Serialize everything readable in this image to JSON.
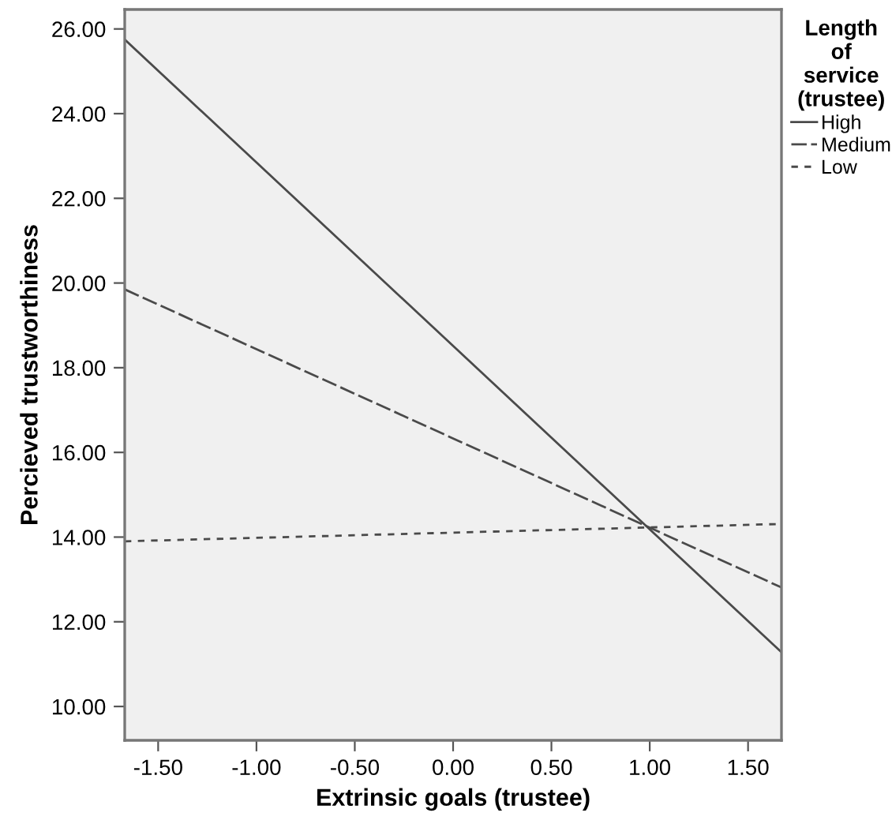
{
  "chart_data": {
    "type": "line",
    "xlabel": "Extrinsic goals (trustee)",
    "ylabel": "Percieved trustworthiness",
    "legend_title": "Length\nof\nservice\n(trustee)",
    "x": [
      -1.67,
      1.67
    ],
    "series": [
      {
        "name": "High",
        "color": "#4a4a4a",
        "line_style": "solid",
        "values": [
          25.75,
          11.28
        ]
      },
      {
        "name": "Medium",
        "color": "#4a4a4a",
        "line_style": "dashed",
        "values": [
          19.85,
          12.81
        ]
      },
      {
        "name": "Low",
        "color": "#4a4a4a",
        "line_style": "dotted",
        "values": [
          13.9,
          14.31
        ]
      }
    ],
    "xlim": [
      -1.67,
      1.67
    ],
    "ylim": [
      9.2,
      26.46
    ],
    "xticks": [
      {
        "value": -1.5,
        "label": "-1.50"
      },
      {
        "value": -1.0,
        "label": "-1.00"
      },
      {
        "value": -0.5,
        "label": "-0.50"
      },
      {
        "value": 0,
        "label": "0.00"
      },
      {
        "value": 0.5,
        "label": "0.50"
      },
      {
        "value": 1.0,
        "label": "1.00"
      },
      {
        "value": 1.5,
        "label": "1.50"
      }
    ],
    "yticks": [
      {
        "value": 10,
        "label": "10.00"
      },
      {
        "value": 12,
        "label": "12.00"
      },
      {
        "value": 14,
        "label": "14.00"
      },
      {
        "value": 16,
        "label": "16.00"
      },
      {
        "value": 18,
        "label": "18.00"
      },
      {
        "value": 20,
        "label": "20.00"
      },
      {
        "value": 22,
        "label": "22.00"
      },
      {
        "value": 24,
        "label": "24.00"
      },
      {
        "value": 26,
        "label": "26.00"
      }
    ],
    "grid": false,
    "legend": "right",
    "marker": "none"
  }
}
